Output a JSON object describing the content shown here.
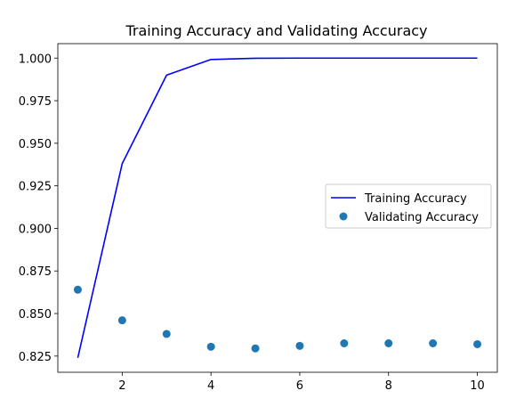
{
  "chart_data": {
    "type": "line",
    "title": "Training Accuracy and Validating Accuracy",
    "xlabel": "",
    "ylabel": "",
    "xlim": [
      0.55,
      10.45
    ],
    "ylim": [
      0.8155,
      1.0085
    ],
    "x_ticks": [
      2,
      4,
      6,
      8,
      10
    ],
    "x_tick_labels": [
      "2",
      "4",
      "6",
      "8",
      "10"
    ],
    "y_ticks": [
      0.825,
      0.85,
      0.875,
      0.9,
      0.925,
      0.95,
      0.975,
      1.0
    ],
    "y_tick_labels": [
      "0.825",
      "0.850",
      "0.875",
      "0.900",
      "0.925",
      "0.950",
      "0.975",
      "1.000"
    ],
    "grid": false,
    "legend_position": "center-right",
    "x": [
      1,
      2,
      3,
      4,
      5,
      6,
      7,
      8,
      9,
      10
    ],
    "series": [
      {
        "name": "Training Accuracy",
        "style": "line",
        "color": "#0000ff",
        "values": [
          0.824,
          0.938,
          0.99,
          0.9992,
          0.9999,
          1.0,
          1.0,
          1.0,
          1.0,
          1.0
        ]
      },
      {
        "name": "Validating Accuracy",
        "style": "scatter",
        "color": "#1f77b4",
        "values": [
          0.864,
          0.846,
          0.838,
          0.8305,
          0.8295,
          0.831,
          0.8325,
          0.8325,
          0.8325,
          0.832
        ]
      }
    ]
  }
}
